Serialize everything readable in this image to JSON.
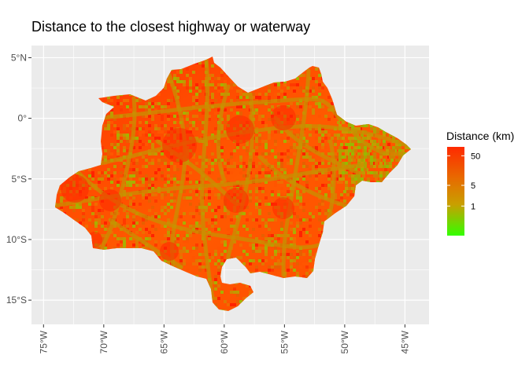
{
  "title": "Distance to the closest highway or waterway",
  "map": {
    "lon_range": [
      -76,
      -43
    ],
    "lat_range": [
      -17,
      6
    ],
    "x_ticks": [
      {
        "value": -75,
        "label": "75°W"
      },
      {
        "value": -70,
        "label": "70°W"
      },
      {
        "value": -65,
        "label": "65°W"
      },
      {
        "value": -60,
        "label": "60°W"
      },
      {
        "value": -55,
        "label": "55°W"
      },
      {
        "value": -50,
        "label": "50°W"
      },
      {
        "value": -45,
        "label": "45°W"
      }
    ],
    "y_ticks": [
      {
        "value": 5,
        "label": "5°N"
      },
      {
        "value": 0,
        "label": "0°"
      },
      {
        "value": -5,
        "label": "5°S"
      },
      {
        "value": -10,
        "label": "10°S"
      },
      {
        "value": -15,
        "label": "15°S"
      }
    ],
    "panel_background": "#ebebeb",
    "grid_color": "#ffffff"
  },
  "legend": {
    "title": "Distance (km)",
    "breaks": [
      {
        "value": 50,
        "label": "50"
      },
      {
        "value": 5,
        "label": "5"
      },
      {
        "value": 1,
        "label": "1"
      }
    ],
    "scale_min": 0.1,
    "scale_max": 100,
    "color_low": "#33ff00",
    "color_mid": "#c8a000",
    "color_high": "#ff2a00"
  }
}
